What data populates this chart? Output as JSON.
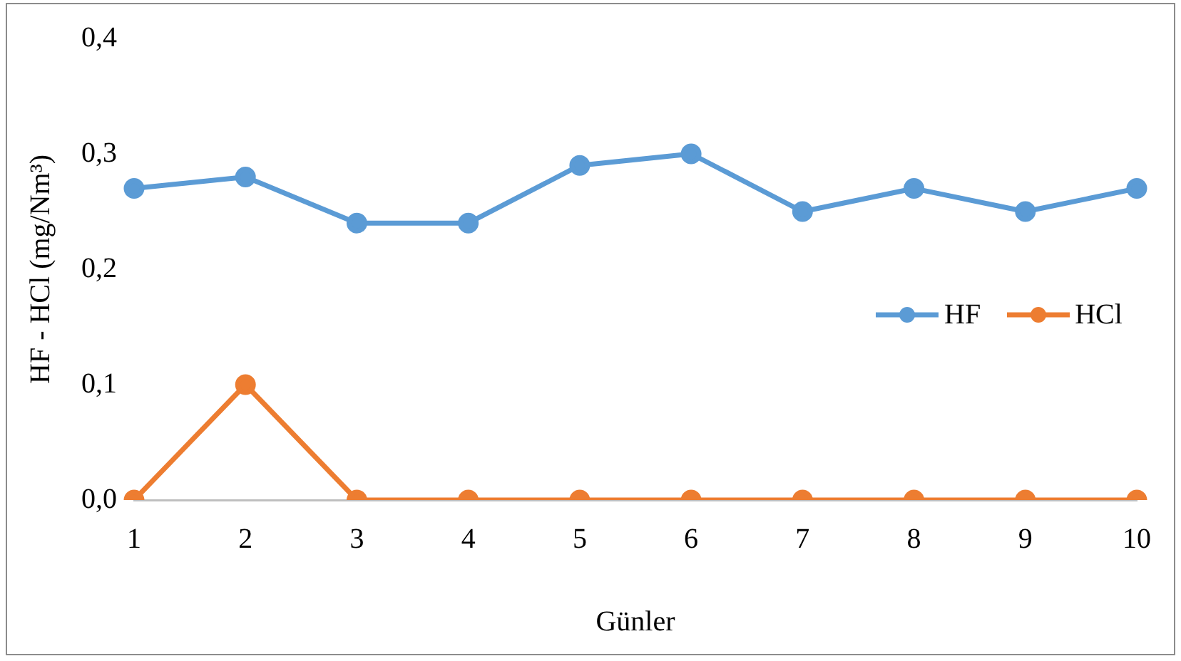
{
  "chart_data": {
    "type": "line",
    "xlabel": "Günler",
    "ylabel": "HF - HCl (mg/Nm³)",
    "categories": [
      "1",
      "2",
      "3",
      "4",
      "5",
      "6",
      "7",
      "8",
      "9",
      "10"
    ],
    "series": [
      {
        "name": "HF",
        "color": "#5b9bd5",
        "values": [
          0.27,
          0.28,
          0.24,
          0.24,
          0.29,
          0.3,
          0.25,
          0.27,
          0.25,
          0.27
        ]
      },
      {
        "name": "HCl",
        "color": "#ed7d31",
        "values": [
          0,
          0.1,
          0,
          0,
          0,
          0,
          0,
          0,
          0,
          0
        ]
      }
    ],
    "ylim": [
      0,
      0.4
    ],
    "yticks": [
      {
        "value": 0,
        "label": "0,0"
      },
      {
        "value": 0.1,
        "label": "0,1"
      },
      {
        "value": 0.2,
        "label": "0,2"
      },
      {
        "value": 0.3,
        "label": "0,3"
      },
      {
        "value": 0.4,
        "label": "0,4"
      }
    ],
    "grid": false,
    "legend": "right",
    "marker": "circle",
    "line_style": "solid"
  }
}
